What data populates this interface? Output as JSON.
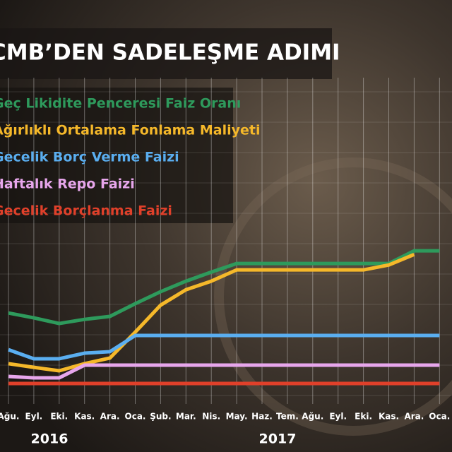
{
  "chart_data": {
    "type": "line",
    "title": "CMB’DEN SADELEŞME ADIMI",
    "categories": [
      "Ağu.",
      "Eyl.",
      "Eki.",
      "Kas.",
      "Ara.",
      "Oca.",
      "Şub.",
      "Mar.",
      "Nis.",
      "May.",
      "Haz.",
      "Tem.",
      "Ağu.",
      "Eyl.",
      "Eki.",
      "Kas.",
      "Ara.",
      "Oca."
    ],
    "years": [
      "2016",
      "2017"
    ],
    "series": [
      {
        "name": "Geç Likidite Penceresi Faiz Oranı",
        "color": "#2e9a5c",
        "values": [
          10.13,
          9.93,
          9.7,
          9.87,
          9.99,
          10.51,
          11.0,
          11.43,
          11.8,
          12.15,
          12.15,
          12.15,
          12.15,
          12.15,
          12.15,
          12.15,
          12.67,
          12.67
        ]
      },
      {
        "name": "Ağırlıklı Ortalama Fonlama Maliyeti",
        "color": "#f5b82a",
        "values": [
          8.06,
          7.91,
          7.77,
          8.06,
          8.29,
          9.35,
          10.45,
          11.08,
          11.43,
          11.89,
          11.89,
          11.89,
          11.89,
          11.89,
          11.89,
          12.09,
          12.52,
          null
        ]
      },
      {
        "name": "Gecelik Borç Verme Faizi",
        "color": "#5aaef0",
        "values": [
          8.63,
          8.26,
          8.26,
          8.49,
          8.55,
          9.21,
          9.21,
          9.21,
          9.21,
          9.21,
          9.21,
          9.21,
          9.21,
          9.21,
          9.21,
          9.21,
          9.21,
          9.21
        ]
      },
      {
        "name": "Haftalık Repo Faizi",
        "color": "#e7a6ec",
        "values": [
          7.54,
          7.48,
          7.48,
          8.0,
          8.0,
          8.0,
          8.0,
          8.0,
          8.0,
          8.0,
          8.0,
          8.0,
          8.0,
          8.0,
          8.0,
          8.0,
          8.0,
          8.0
        ]
      },
      {
        "name": "Gecelik Borçlanma Faizi",
        "color": "#e0402a",
        "values": [
          7.25,
          7.25,
          7.25,
          7.25,
          7.25,
          7.25,
          7.25,
          7.25,
          7.25,
          7.25,
          7.25,
          7.25,
          7.25,
          7.25,
          7.25,
          7.25,
          7.25,
          7.25
        ]
      }
    ],
    "ylim": [
      6.5,
      20
    ]
  }
}
